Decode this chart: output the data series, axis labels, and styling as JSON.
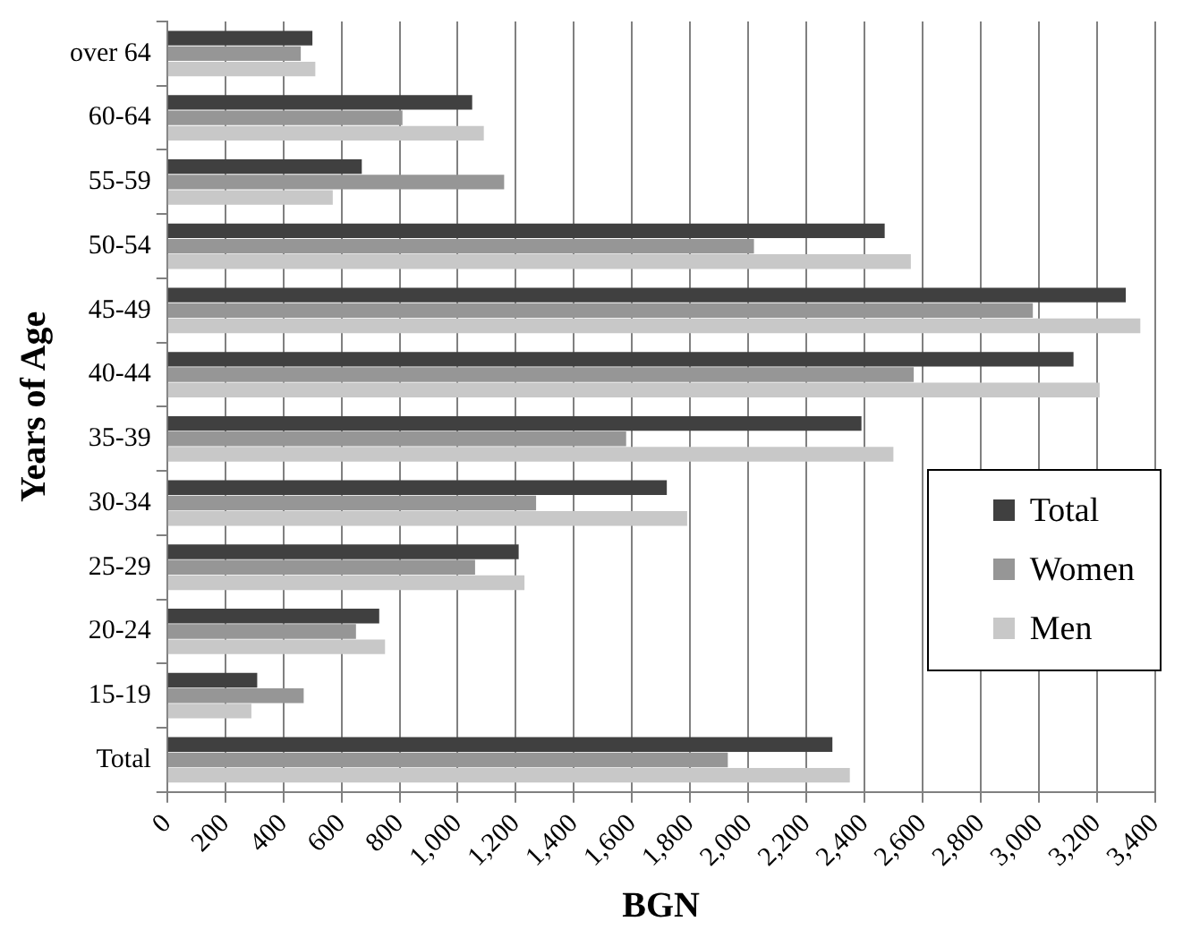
{
  "chart_data": {
    "type": "bar",
    "orientation": "horizontal",
    "xlabel": "BGN",
    "ylabel": "Years of Age",
    "categories": [
      "over 64",
      "60-64",
      "55-59",
      "50-54",
      "45-49",
      "40-44",
      "35-39",
      "30-34",
      "25-29",
      "20-24",
      "15-19",
      "Total"
    ],
    "series": [
      {
        "name": "Total",
        "color": "#404040",
        "values": [
          500,
          1050,
          670,
          2470,
          3300,
          3120,
          2390,
          1720,
          1210,
          730,
          310,
          2290
        ]
      },
      {
        "name": "Women",
        "color": "#969696",
        "values": [
          460,
          810,
          1160,
          2020,
          2980,
          2570,
          1580,
          1270,
          1060,
          650,
          470,
          1930
        ]
      },
      {
        "name": "Men",
        "color": "#c8c8c8",
        "values": [
          510,
          1090,
          570,
          2560,
          3350,
          3210,
          2500,
          1790,
          1230,
          750,
          290,
          2350
        ]
      }
    ],
    "xlim": [
      0,
      3400
    ],
    "xticks": [
      0,
      200,
      400,
      600,
      800,
      {
        "value": 1000,
        "label": "1,000"
      },
      {
        "value": 1200,
        "label": "1,200"
      },
      {
        "value": 1400,
        "label": "1,400"
      },
      {
        "value": 1600,
        "label": "1,600"
      },
      {
        "value": 1800,
        "label": "1,800"
      },
      {
        "value": 2000,
        "label": "2,000"
      },
      {
        "value": 2200,
        "label": "2,200"
      },
      {
        "value": 2400,
        "label": "2,400"
      },
      {
        "value": 2600,
        "label": "2,600"
      },
      {
        "value": 2800,
        "label": "2,800"
      },
      {
        "value": 3000,
        "label": "3,000"
      },
      {
        "value": 3200,
        "label": "3,200"
      },
      {
        "value": 3400,
        "label": "3,400"
      }
    ],
    "grid": "x",
    "legend": "right"
  }
}
